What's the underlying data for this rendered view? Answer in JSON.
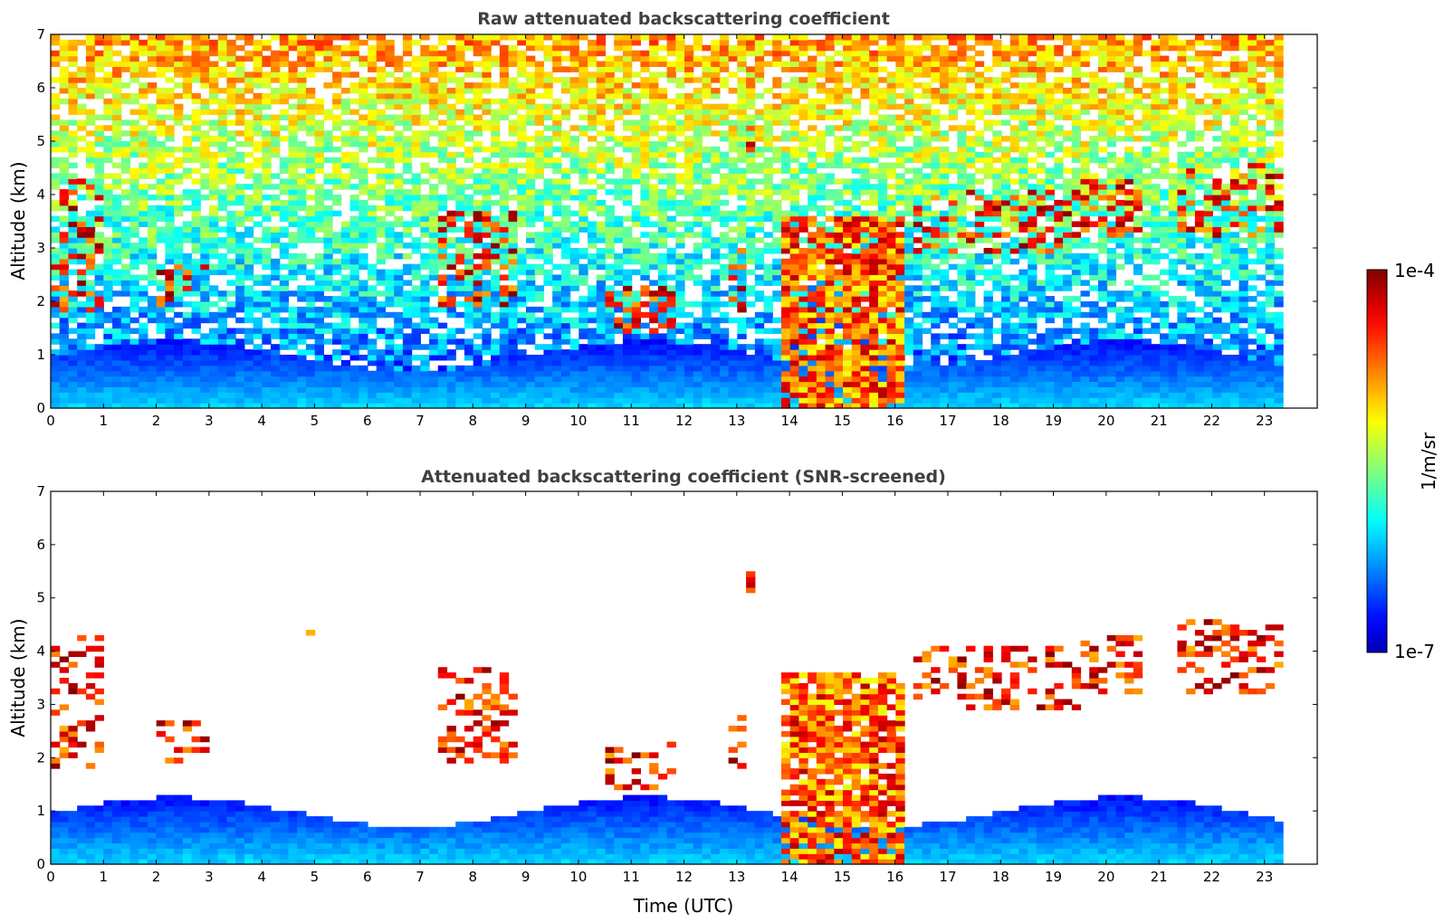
{
  "chart_data": [
    {
      "type": "heatmap",
      "title": "Raw attenuated backscattering coefficient",
      "xlabel": "",
      "ylabel": "Altitude (km)",
      "xlim": [
        0,
        24
      ],
      "ylim": [
        0,
        7
      ],
      "x_ticks": [
        "0",
        "1",
        "2",
        "3",
        "4",
        "5",
        "6",
        "7",
        "8",
        "9",
        "10",
        "11",
        "12",
        "13",
        "14",
        "15",
        "16",
        "17",
        "18",
        "19",
        "20",
        "21",
        "22",
        "23"
      ],
      "y_ticks": [
        "0",
        "1",
        "2",
        "3",
        "4",
        "5",
        "6",
        "7"
      ],
      "data_end_time": 23.35,
      "features": {
        "surface_layer_top_km": 1.1,
        "noisy_background": true,
        "clouds": [
          {
            "t0": 0.0,
            "t1": 0.9,
            "alt": [
              1.8,
              4.2
            ]
          },
          {
            "t0": 1.9,
            "t1": 2.9,
            "alt": [
              1.9,
              2.6
            ]
          },
          {
            "t0": 4.7,
            "t1": 4.9,
            "alt": [
              4.3,
              4.6
            ]
          },
          {
            "t0": 7.3,
            "t1": 8.8,
            "alt": [
              1.9,
              3.6
            ]
          },
          {
            "t0": 10.4,
            "t1": 11.8,
            "alt": [
              1.4,
              2.3
            ]
          },
          {
            "t0": 12.7,
            "t1": 13.1,
            "alt": [
              1.8,
              3.0
            ]
          },
          {
            "t0": 13.1,
            "t1": 13.3,
            "alt": [
              4.8,
              5.5
            ]
          },
          {
            "t0": 13.8,
            "t1": 16.1,
            "alt": [
              0.0,
              3.5
            ]
          },
          {
            "t0": 16.2,
            "t1": 19.5,
            "alt": [
              2.9,
              4.0
            ]
          },
          {
            "t0": 19.5,
            "t1": 20.6,
            "alt": [
              3.2,
              4.2
            ]
          },
          {
            "t0": 21.2,
            "t1": 23.3,
            "alt": [
              3.2,
              4.6
            ]
          }
        ]
      }
    },
    {
      "type": "heatmap",
      "title": "Attenuated backscattering coefficient (SNR-screened)",
      "xlabel": "Time (UTC)",
      "ylabel": "Altitude (km)",
      "xlim": [
        0,
        24
      ],
      "ylim": [
        0,
        7
      ],
      "x_ticks": [
        "0",
        "1",
        "2",
        "3",
        "4",
        "5",
        "6",
        "7",
        "8",
        "9",
        "10",
        "11",
        "12",
        "13",
        "14",
        "15",
        "16",
        "17",
        "18",
        "19",
        "20",
        "21",
        "22",
        "23"
      ],
      "y_ticks": [
        "0",
        "1",
        "2",
        "3",
        "4",
        "5",
        "6",
        "7"
      ],
      "data_end_time": 23.35,
      "features": {
        "surface_layer_top_km": 1.1,
        "noisy_background": false
      }
    }
  ],
  "colorbar": {
    "label": "1/m/sr",
    "max_label": "1e-4",
    "min_label": "1e-7",
    "scale": "log",
    "range": [
      1e-07,
      0.0001
    ],
    "colormap": "jet"
  }
}
